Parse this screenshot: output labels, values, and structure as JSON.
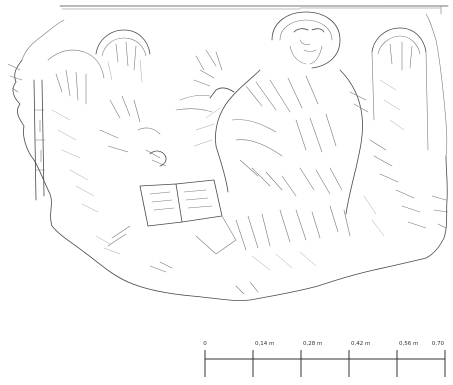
{
  "scale_bar": {
    "ticks": [
      {
        "value": 0,
        "label": "0"
      },
      {
        "value": 0.14,
        "label": "0,14 m"
      },
      {
        "value": 0.28,
        "label": "0,28 m"
      },
      {
        "value": 0.42,
        "label": "0,42 m"
      },
      {
        "value": 0.56,
        "label": "0,56 m"
      },
      {
        "value": 0.7,
        "label": "0,70"
      }
    ],
    "max": 0.7
  },
  "colors": {
    "ink": "#4a4a4a",
    "background": "#ffffff"
  }
}
